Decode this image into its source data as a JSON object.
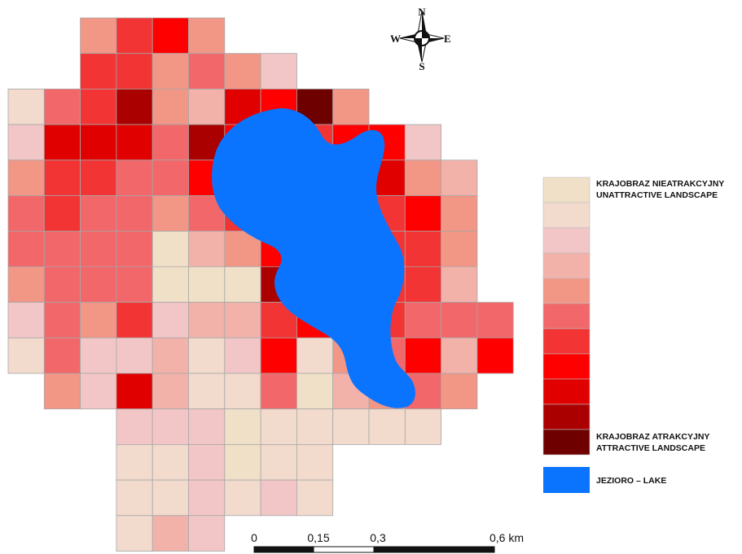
{
  "palette": [
    "#f0e0c8",
    "#f2dacc",
    "#f2c6c6",
    "#f2b2aa",
    "#f29686",
    "#f2676a",
    "#f23434",
    "#ff0000",
    "#e00000",
    "#aa0000",
    "#6e0000"
  ],
  "lake_color": "#0a74ff",
  "grid": [
    {
      "row": 0,
      "cells": [
        [
          2,
          4
        ],
        [
          3,
          6
        ],
        [
          4,
          7
        ],
        [
          5,
          4
        ]
      ]
    },
    {
      "row": 1,
      "cells": [
        [
          2,
          6
        ],
        [
          3,
          6
        ],
        [
          4,
          4
        ],
        [
          5,
          5
        ],
        [
          6,
          4
        ],
        [
          7,
          2
        ]
      ]
    },
    {
      "row": 2,
      "cells": [
        [
          0,
          1
        ],
        [
          1,
          5
        ],
        [
          2,
          6
        ],
        [
          3,
          9
        ],
        [
          4,
          4
        ],
        [
          5,
          3
        ],
        [
          6,
          8
        ],
        [
          7,
          7
        ],
        [
          8,
          10
        ],
        [
          9,
          4
        ]
      ]
    },
    {
      "row": 3,
      "cells": [
        [
          0,
          2
        ],
        [
          1,
          8
        ],
        [
          2,
          8
        ],
        [
          3,
          8
        ],
        [
          4,
          5
        ],
        [
          5,
          9
        ],
        [
          6,
          7
        ],
        [
          7,
          7
        ],
        [
          8,
          6
        ],
        [
          9,
          7
        ],
        [
          10,
          7
        ],
        [
          11,
          2
        ]
      ]
    },
    {
      "row": 4,
      "cells": [
        [
          0,
          4
        ],
        [
          1,
          6
        ],
        [
          2,
          6
        ],
        [
          3,
          5
        ],
        [
          4,
          5
        ],
        [
          5,
          7
        ],
        [
          6,
          7
        ],
        [
          7,
          6
        ],
        [
          8,
          7
        ],
        [
          9,
          6
        ],
        [
          10,
          8
        ],
        [
          11,
          4
        ],
        [
          12,
          3
        ]
      ]
    },
    {
      "row": 5,
      "cells": [
        [
          0,
          5
        ],
        [
          1,
          6
        ],
        [
          2,
          5
        ],
        [
          3,
          5
        ],
        [
          4,
          4
        ],
        [
          5,
          5
        ],
        [
          6,
          6
        ],
        [
          7,
          6
        ],
        [
          8,
          6
        ],
        [
          9,
          6
        ],
        [
          10,
          6
        ],
        [
          11,
          7
        ],
        [
          12,
          4
        ]
      ]
    },
    {
      "row": 6,
      "cells": [
        [
          0,
          5
        ],
        [
          1,
          5
        ],
        [
          2,
          5
        ],
        [
          3,
          5
        ],
        [
          4,
          0
        ],
        [
          5,
          3
        ],
        [
          6,
          4
        ],
        [
          7,
          7
        ],
        [
          8,
          6
        ],
        [
          9,
          6
        ],
        [
          10,
          6
        ],
        [
          11,
          6
        ],
        [
          12,
          4
        ]
      ]
    },
    {
      "row": 7,
      "cells": [
        [
          0,
          4
        ],
        [
          1,
          5
        ],
        [
          2,
          5
        ],
        [
          3,
          5
        ],
        [
          4,
          0
        ],
        [
          5,
          0
        ],
        [
          6,
          0
        ],
        [
          7,
          9
        ],
        [
          8,
          6
        ],
        [
          9,
          6
        ],
        [
          10,
          6
        ],
        [
          11,
          6
        ],
        [
          12,
          3
        ]
      ]
    },
    {
      "row": 8,
      "cells": [
        [
          0,
          2
        ],
        [
          1,
          5
        ],
        [
          2,
          4
        ],
        [
          3,
          6
        ],
        [
          4,
          2
        ],
        [
          5,
          3
        ],
        [
          6,
          3
        ],
        [
          7,
          6
        ],
        [
          8,
          7
        ],
        [
          9,
          6
        ],
        [
          10,
          6
        ],
        [
          11,
          5
        ],
        [
          12,
          5
        ],
        [
          13,
          5
        ]
      ]
    },
    {
      "row": 9,
      "cells": [
        [
          0,
          1
        ],
        [
          1,
          5
        ],
        [
          2,
          2
        ],
        [
          3,
          2
        ],
        [
          4,
          3
        ],
        [
          5,
          1
        ],
        [
          6,
          2
        ],
        [
          7,
          7
        ],
        [
          8,
          1
        ],
        [
          9,
          4
        ],
        [
          10,
          5
        ],
        [
          11,
          7
        ],
        [
          12,
          3
        ],
        [
          13,
          7
        ]
      ]
    },
    {
      "row": 10,
      "cells": [
        [
          1,
          4
        ],
        [
          2,
          2
        ],
        [
          3,
          8
        ],
        [
          4,
          3
        ],
        [
          5,
          1
        ],
        [
          6,
          1
        ],
        [
          7,
          5
        ],
        [
          8,
          0
        ],
        [
          9,
          3
        ],
        [
          10,
          4
        ],
        [
          11,
          5
        ],
        [
          12,
          4
        ]
      ]
    },
    {
      "row": 11,
      "cells": [
        [
          3,
          2
        ],
        [
          4,
          2
        ],
        [
          5,
          2
        ],
        [
          6,
          0
        ],
        [
          7,
          1
        ],
        [
          8,
          1
        ],
        [
          9,
          1
        ],
        [
          10,
          1
        ],
        [
          11,
          1
        ]
      ]
    },
    {
      "row": 12,
      "cells": [
        [
          3,
          1
        ],
        [
          4,
          1
        ],
        [
          5,
          2
        ],
        [
          6,
          0
        ],
        [
          7,
          1
        ],
        [
          8,
          1
        ]
      ]
    },
    {
      "row": 13,
      "cells": [
        [
          3,
          1
        ],
        [
          4,
          1
        ],
        [
          5,
          2
        ],
        [
          6,
          1
        ],
        [
          7,
          2
        ],
        [
          8,
          1
        ]
      ]
    },
    {
      "row": 14,
      "cells": [
        [
          3,
          1
        ],
        [
          4,
          3
        ],
        [
          5,
          2
        ]
      ]
    }
  ],
  "compass": {
    "n": "N",
    "s": "S",
    "e": "E",
    "w": "W"
  },
  "legend": {
    "label_top_1": "KRAJOBRAZ NIEATRAKCYJNY",
    "label_top_2": "UNATTRACTIVE LANDSCAPE",
    "label_bottom_1": "KRAJOBRAZ ATRAKCYJNY",
    "label_bottom_2": "ATTRACTIVE LANDSCAPE",
    "lake_label": "JEZIORO – LAKE"
  },
  "scale_bar": {
    "ticks": [
      "0",
      "0,15",
      "0,3",
      "0,6 km"
    ]
  }
}
